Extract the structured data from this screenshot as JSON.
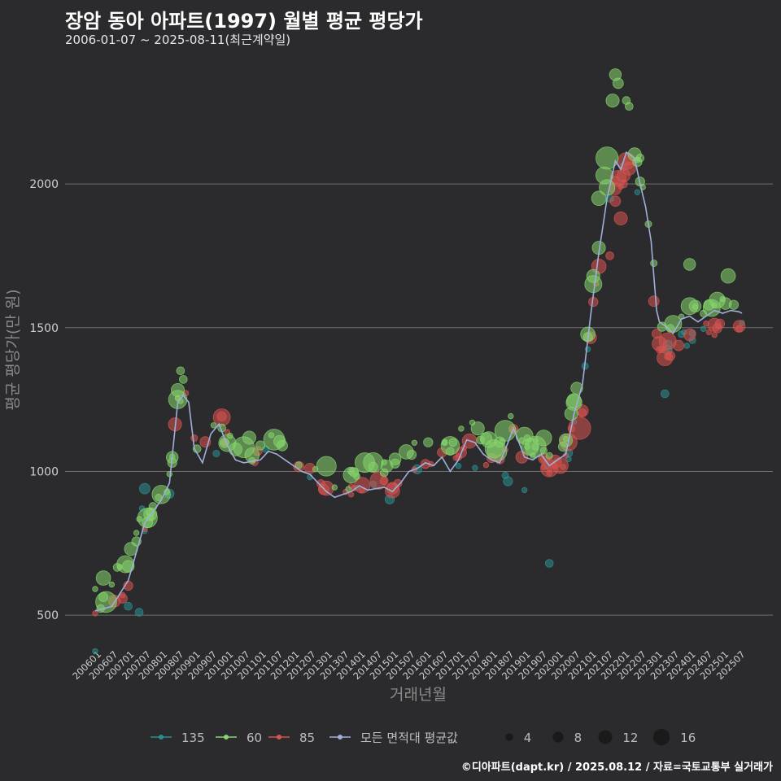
{
  "title": "장암 동아 아파트(1997) 월별 평균 평당가",
  "subtitle": "2006-01-07 ~ 2025-08-11(최근계약일)",
  "footer": "©디아파트(dapt.kr) / 2025.08.12 / 자료=국토교통부 실거래가",
  "colors": {
    "background": "#2b2b2d",
    "grid": "#6e6e6e",
    "s135": "#2a8f92",
    "s60": "#86d66e",
    "s85": "#d9534f",
    "avg": "#9fb0d8"
  },
  "chart_data": {
    "type": "scatter",
    "title": "장암 동아 아파트(1997) 월별 평균 평당가",
    "xlabel": "거래년월",
    "ylabel": "평균 평당가(만 원)",
    "ylim": [
      390,
      2470
    ],
    "yticks": [
      500,
      1000,
      1500,
      2000
    ],
    "grid": true,
    "legend_position": "bottom",
    "x_range": [
      "200601",
      "202508"
    ],
    "x_tick_labels": [
      "200601",
      "200607",
      "200701",
      "200707",
      "200801",
      "200807",
      "200901",
      "200907",
      "201001",
      "201007",
      "201101",
      "201107",
      "201201",
      "201207",
      "201301",
      "201307",
      "201401",
      "201407",
      "201501",
      "201507",
      "201601",
      "201607",
      "201701",
      "201707",
      "201801",
      "201807",
      "201901",
      "201907",
      "202001",
      "202007",
      "202101",
      "202107",
      "202201",
      "202207",
      "202301",
      "202307",
      "202401",
      "202407",
      "202501",
      "202507"
    ],
    "legend": {
      "series": [
        {
          "key": "s135",
          "label": "135"
        },
        {
          "key": "s60",
          "label": "60"
        },
        {
          "key": "s85",
          "label": "85"
        },
        {
          "key": "avg",
          "label": "모든 면적대 평균값"
        }
      ],
      "sizes": [
        {
          "value": 4,
          "label": "4"
        },
        {
          "value": 8,
          "label": "8"
        },
        {
          "value": 12,
          "label": "12"
        },
        {
          "value": 16,
          "label": "16"
        }
      ]
    },
    "avg_anchors": [
      [
        "200601",
        515
      ],
      [
        "200607",
        530
      ],
      [
        "200701",
        620
      ],
      [
        "200707",
        820
      ],
      [
        "200801",
        900
      ],
      [
        "200804",
        960
      ],
      [
        "200807",
        1240
      ],
      [
        "200809",
        1265
      ],
      [
        "200811",
        1240
      ],
      [
        "200901",
        1080
      ],
      [
        "200904",
        1030
      ],
      [
        "200907",
        1130
      ],
      [
        "200910",
        1165
      ],
      [
        "201001",
        1090
      ],
      [
        "201004",
        1040
      ],
      [
        "201007",
        1030
      ],
      [
        "201101",
        1040
      ],
      [
        "201104",
        1070
      ],
      [
        "201107",
        1060
      ],
      [
        "201110",
        1040
      ],
      [
        "201201",
        1020
      ],
      [
        "201204",
        1000
      ],
      [
        "201207",
        990
      ],
      [
        "201210",
        960
      ],
      [
        "201301",
        930
      ],
      [
        "201304",
        910
      ],
      [
        "201307",
        920
      ],
      [
        "201310",
        930
      ],
      [
        "201401",
        950
      ],
      [
        "201404",
        935
      ],
      [
        "201407",
        940
      ],
      [
        "201410",
        945
      ],
      [
        "201501",
        930
      ],
      [
        "201504",
        960
      ],
      [
        "201507",
        1000
      ],
      [
        "201510",
        1010
      ],
      [
        "201601",
        1030
      ],
      [
        "201604",
        1020
      ],
      [
        "201607",
        1050
      ],
      [
        "201610",
        1000
      ],
      [
        "201701",
        1040
      ],
      [
        "201704",
        1110
      ],
      [
        "201707",
        1100
      ],
      [
        "201710",
        1060
      ],
      [
        "201801",
        1040
      ],
      [
        "201804",
        1030
      ],
      [
        "201807",
        1100
      ],
      [
        "201809",
        1150
      ],
      [
        "201811",
        1100
      ],
      [
        "201901",
        1050
      ],
      [
        "201904",
        1040
      ],
      [
        "201907",
        1060
      ],
      [
        "201910",
        1020
      ],
      [
        "202001",
        1040
      ],
      [
        "202004",
        1060
      ],
      [
        "202007",
        1200
      ],
      [
        "202010",
        1300
      ],
      [
        "202101",
        1540
      ],
      [
        "202104",
        1760
      ],
      [
        "202107",
        1950
      ],
      [
        "202110",
        2080
      ],
      [
        "202112",
        2050
      ],
      [
        "202202",
        2110
      ],
      [
        "202205",
        2090
      ],
      [
        "202207",
        2000
      ],
      [
        "202209",
        1920
      ],
      [
        "202211",
        1800
      ],
      [
        "202301",
        1560
      ],
      [
        "202302",
        1520
      ],
      [
        "202305",
        1500
      ],
      [
        "202307",
        1480
      ],
      [
        "202310",
        1530
      ],
      [
        "202401",
        1540
      ],
      [
        "202404",
        1520
      ],
      [
        "202407",
        1540
      ],
      [
        "202410",
        1560
      ],
      [
        "202501",
        1550
      ],
      [
        "202504",
        1560
      ],
      [
        "202507",
        1555
      ],
      [
        "202508",
        1550
      ]
    ],
    "point_counts": {
      "s60": 130,
      "s85": 95,
      "s135": 35
    },
    "s60_offsets": [
      [
        -3,
        110
      ],
      [
        -10,
        40
      ],
      [
        -5,
        70
      ],
      [
        10,
        85
      ],
      [
        20,
        80
      ],
      [
        55,
        90
      ],
      [
        60,
        75
      ],
      [
        45,
        60
      ],
      [
        30,
        55
      ],
      [
        -5,
        50
      ],
      [
        -3,
        40
      ],
      [
        30,
        30
      ]
    ],
    "s85_offsets": [
      [
        0,
        -35
      ],
      [
        40,
        -20
      ],
      [
        55,
        -30
      ],
      [
        40,
        -15
      ],
      [
        20,
        -10
      ],
      [
        20,
        -5
      ],
      [
        10,
        -10
      ],
      [
        0,
        -20
      ],
      [
        -10,
        -20
      ],
      [
        -90,
        -30
      ],
      [
        -110,
        -60
      ],
      [
        -70,
        -40
      ]
    ],
    "s135_offsets": [
      [
        80,
        -150
      ],
      [
        80,
        -120
      ],
      [
        100,
        -100
      ],
      [
        60,
        -80
      ],
      [
        30,
        -60
      ],
      [
        15,
        -40
      ],
      [
        5,
        -40
      ],
      [
        -60,
        -120
      ],
      [
        -20,
        -50
      ],
      [
        -10,
        -30
      ],
      [
        -40,
        -100
      ],
      [
        -30,
        -70
      ]
    ],
    "highlight_points": [
      {
        "series": "s60",
        "x": "202109",
        "y": 2290,
        "size": 7
      },
      {
        "series": "s60",
        "x": "202110",
        "y": 2380,
        "size": 6
      },
      {
        "series": "s60",
        "x": "202111",
        "y": 2350,
        "size": 5
      },
      {
        "series": "s60",
        "x": "202202",
        "y": 2290,
        "size": 3
      },
      {
        "series": "s60",
        "x": "202203",
        "y": 2270,
        "size": 3
      },
      {
        "series": "s60",
        "x": "202107",
        "y": 2090,
        "size": 14
      },
      {
        "series": "s60",
        "x": "202106",
        "y": 2030,
        "size": 10
      },
      {
        "series": "s60",
        "x": "202104",
        "y": 1950,
        "size": 8
      },
      {
        "series": "s60",
        "x": "202102",
        "y": 1680,
        "size": 7
      },
      {
        "series": "s60",
        "x": "202207",
        "y": 2090,
        "size": 3
      },
      {
        "series": "s60",
        "x": "200808",
        "y": 1350,
        "size": 3
      },
      {
        "series": "s60",
        "x": "200809",
        "y": 1320,
        "size": 3
      },
      {
        "series": "s60",
        "x": "200807",
        "y": 1250,
        "size": 11
      },
      {
        "series": "s60",
        "x": "202401",
        "y": 1720,
        "size": 6
      },
      {
        "series": "s60",
        "x": "202503",
        "y": 1680,
        "size": 8
      },
      {
        "series": "s85",
        "x": "202110",
        "y": 1940,
        "size": 5
      },
      {
        "series": "s85",
        "x": "202112",
        "y": 1880,
        "size": 7
      },
      {
        "series": "s85",
        "x": "202201",
        "y": 2000,
        "size": 3
      },
      {
        "series": "s85",
        "x": "202108",
        "y": 1750,
        "size": 3
      },
      {
        "series": "s85",
        "x": "202009",
        "y": 1150,
        "size": 14
      },
      {
        "series": "s135",
        "x": "201910",
        "y": 680,
        "size": 3
      },
      {
        "series": "s135",
        "x": "200705",
        "y": 510,
        "size": 3
      },
      {
        "series": "s135",
        "x": "202304",
        "y": 1270,
        "size": 3
      },
      {
        "series": "s135",
        "x": "200707",
        "y": 940,
        "size": 5
      }
    ]
  }
}
